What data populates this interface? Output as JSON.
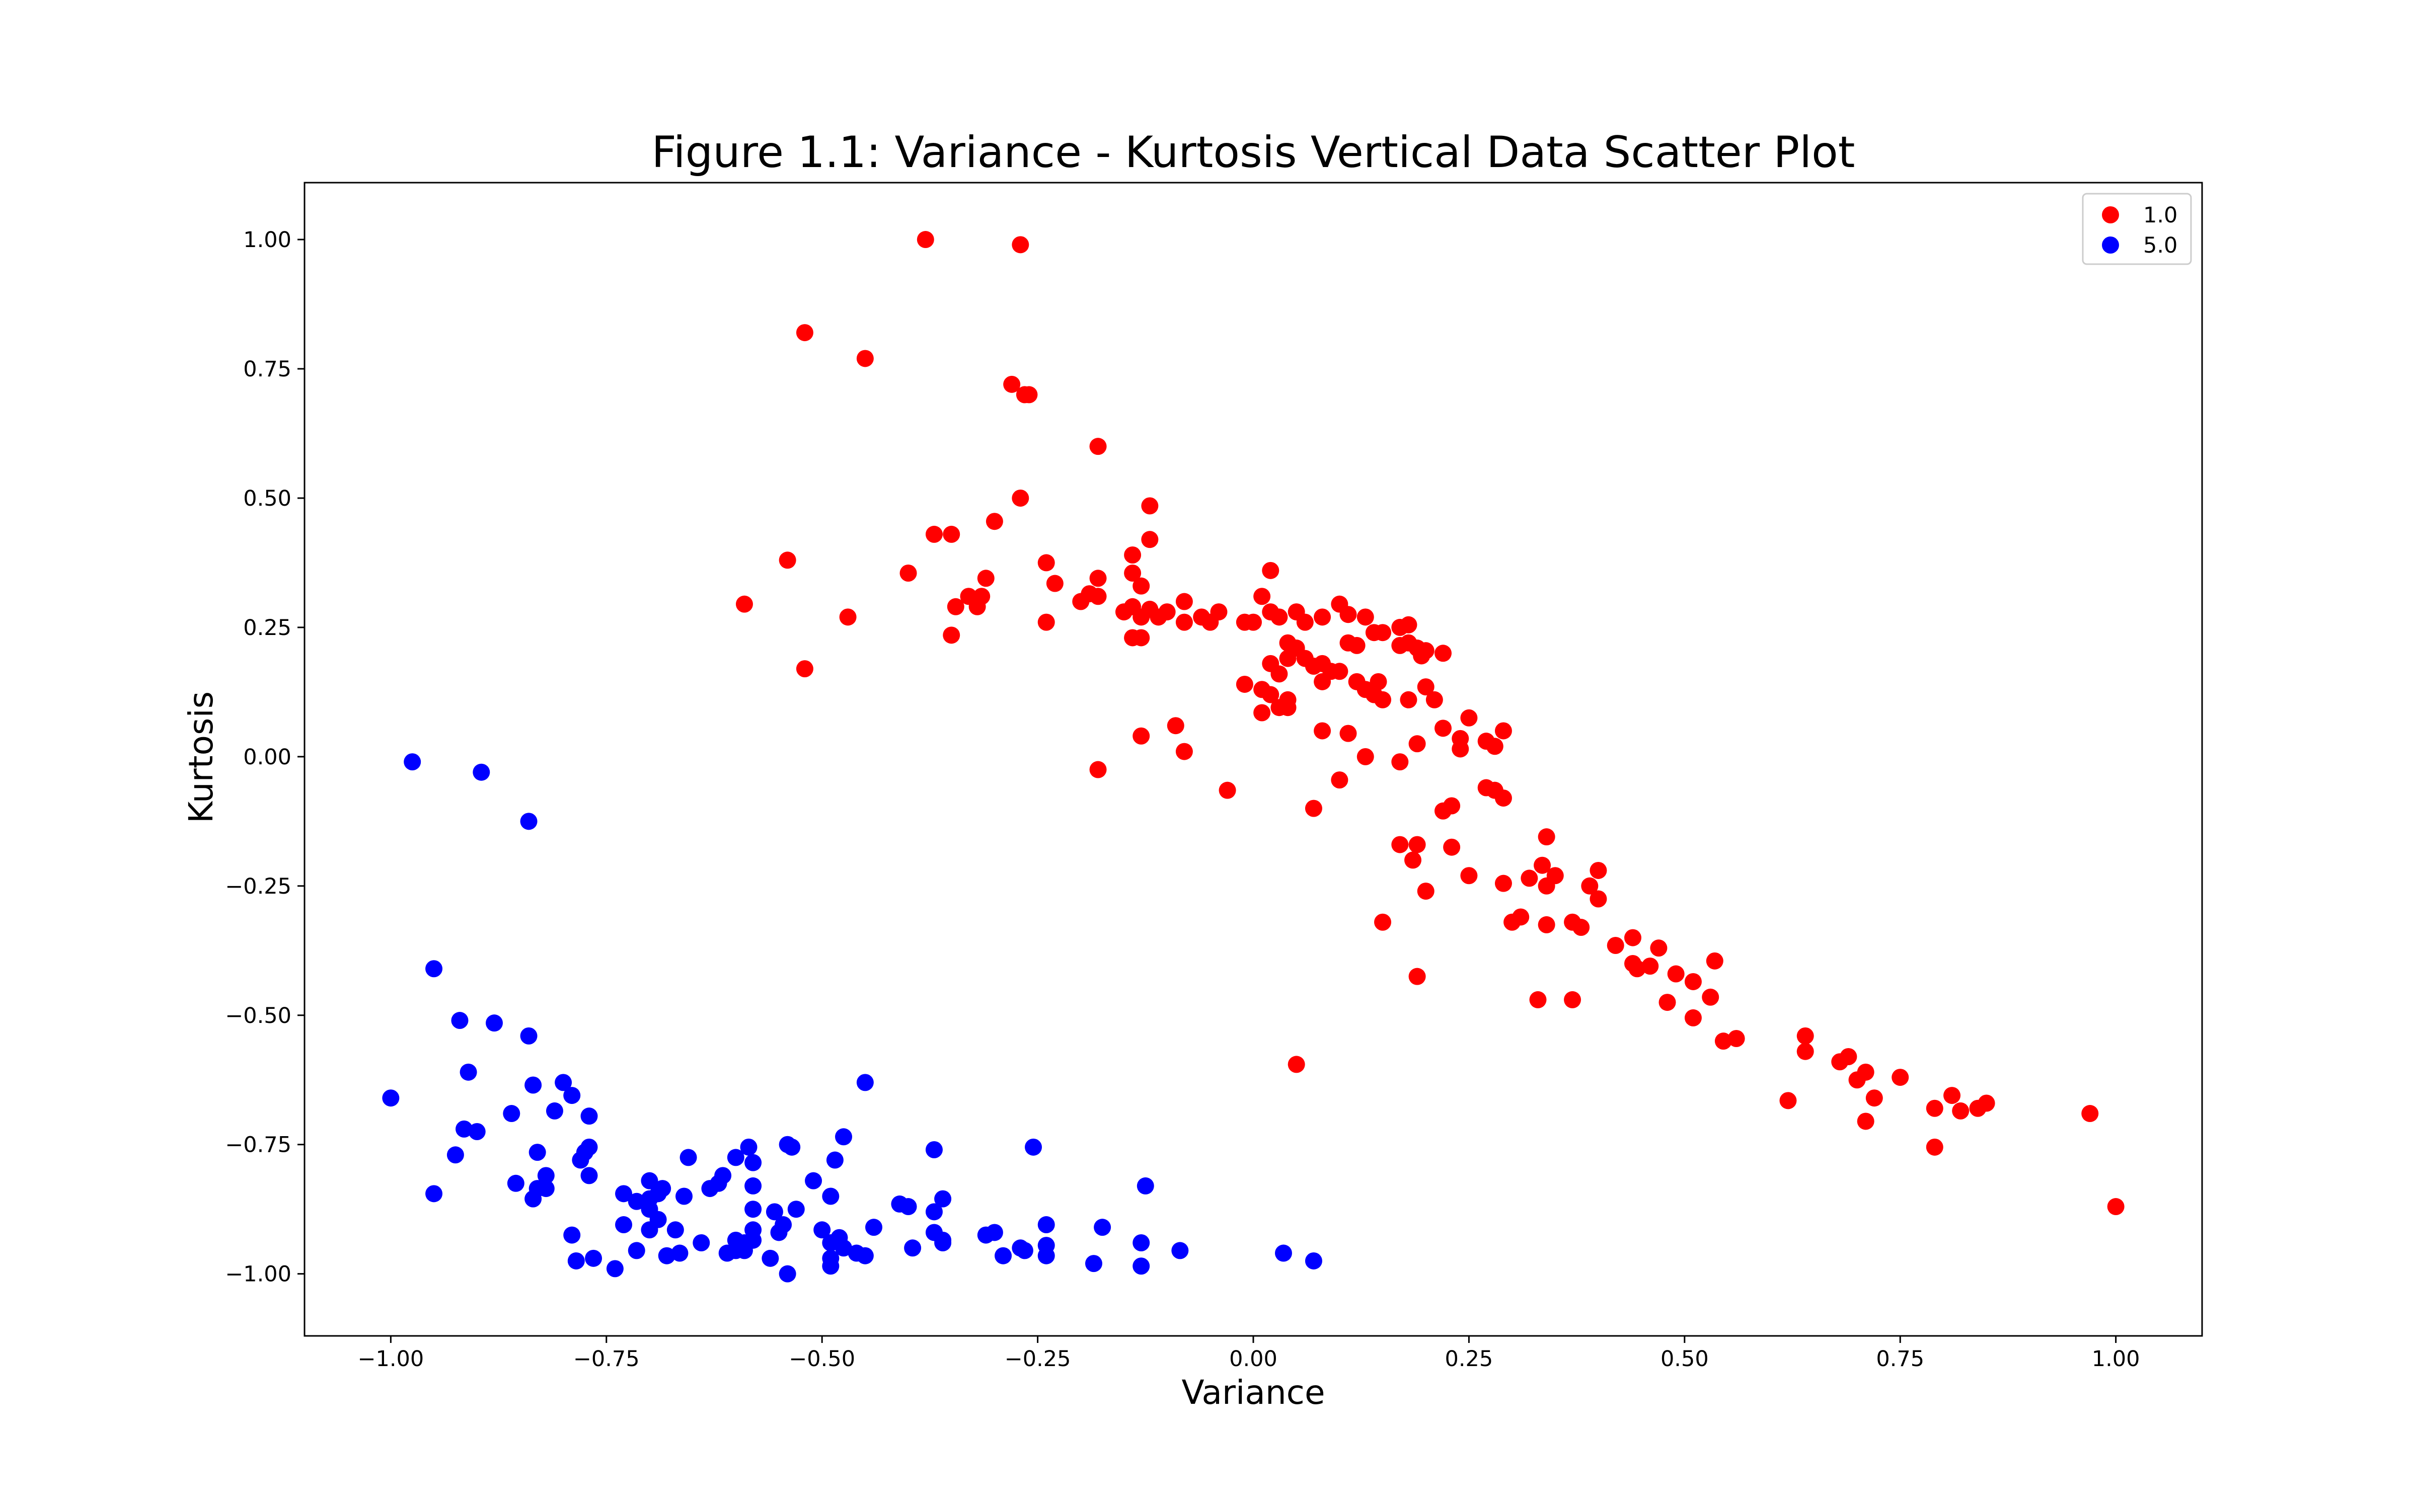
{
  "chart_data": {
    "type": "scatter",
    "title": "Figure 1.1: Variance - Kurtosis Vertical Data Scatter Plot",
    "xlabel": "Variance",
    "ylabel": "Kurtosis",
    "xlim": [
      -1.1,
      1.1
    ],
    "ylim": [
      -1.12,
      1.11
    ],
    "x_ticks": [
      -1.0,
      -0.75,
      -0.5,
      -0.25,
      0.0,
      0.25,
      0.5,
      0.75,
      1.0
    ],
    "x_tick_labels": [
      "−1.00",
      "−0.75",
      "−0.50",
      "−0.25",
      "0.00",
      "0.25",
      "0.50",
      "0.75",
      "1.00"
    ],
    "y_ticks": [
      1.0,
      0.75,
      0.5,
      0.25,
      0.0,
      -0.25,
      -0.5,
      -0.75,
      -1.0
    ],
    "y_tick_labels": [
      "1.00",
      "0.75",
      "0.50",
      "0.25",
      "0.00",
      "−0.25",
      "−0.50",
      "−0.75",
      "−1.00"
    ],
    "grid": false,
    "legend_position": "top-right",
    "series": [
      {
        "name": "1.0",
        "color": "#ff0000",
        "points": [
          [
            -0.38,
            1.0
          ],
          [
            -0.27,
            0.99
          ],
          [
            -0.52,
            0.82
          ],
          [
            -0.45,
            0.77
          ],
          [
            -0.28,
            0.72
          ],
          [
            -0.265,
            0.7
          ],
          [
            -0.26,
            0.7
          ],
          [
            -0.18,
            0.6
          ],
          [
            -0.27,
            0.5
          ],
          [
            -0.12,
            0.485
          ],
          [
            -0.3,
            0.455
          ],
          [
            -0.37,
            0.43
          ],
          [
            -0.35,
            0.43
          ],
          [
            -0.12,
            0.42
          ],
          [
            -0.54,
            0.38
          ],
          [
            -0.24,
            0.375
          ],
          [
            -0.14,
            0.39
          ],
          [
            -0.4,
            0.355
          ],
          [
            -0.31,
            0.345
          ],
          [
            -0.23,
            0.335
          ],
          [
            -0.18,
            0.345
          ],
          [
            -0.14,
            0.355
          ],
          [
            -0.33,
            0.31
          ],
          [
            -0.315,
            0.31
          ],
          [
            -0.345,
            0.29
          ],
          [
            -0.32,
            0.29
          ],
          [
            -0.19,
            0.315
          ],
          [
            -0.18,
            0.31
          ],
          [
            -0.2,
            0.3
          ],
          [
            -0.13,
            0.33
          ],
          [
            -0.08,
            0.3
          ],
          [
            -0.59,
            0.295
          ],
          [
            -0.15,
            0.28
          ],
          [
            -0.14,
            0.29
          ],
          [
            -0.12,
            0.285
          ],
          [
            -0.13,
            0.27
          ],
          [
            -0.11,
            0.27
          ],
          [
            -0.1,
            0.28
          ],
          [
            -0.06,
            0.27
          ],
          [
            -0.04,
            0.28
          ],
          [
            -0.05,
            0.26
          ],
          [
            -0.01,
            0.26
          ],
          [
            0.01,
            0.31
          ],
          [
            0.02,
            0.36
          ],
          [
            0.02,
            0.28
          ],
          [
            0.03,
            0.27
          ],
          [
            0.05,
            0.28
          ],
          [
            0.06,
            0.26
          ],
          [
            0.08,
            0.27
          ],
          [
            0.1,
            0.295
          ],
          [
            0.11,
            0.275
          ],
          [
            0.13,
            0.27
          ],
          [
            0.15,
            0.24
          ],
          [
            0.17,
            0.25
          ],
          [
            0.18,
            0.255
          ],
          [
            -0.47,
            0.27
          ],
          [
            -0.24,
            0.26
          ],
          [
            -0.35,
            0.235
          ],
          [
            -0.14,
            0.23
          ],
          [
            -0.13,
            0.23
          ],
          [
            -0.08,
            0.26
          ],
          [
            0.0,
            0.26
          ],
          [
            0.04,
            0.22
          ],
          [
            0.05,
            0.21
          ],
          [
            0.04,
            0.19
          ],
          [
            0.06,
            0.19
          ],
          [
            0.07,
            0.175
          ],
          [
            0.08,
            0.18
          ],
          [
            0.09,
            0.165
          ],
          [
            0.1,
            0.165
          ],
          [
            0.11,
            0.22
          ],
          [
            0.12,
            0.215
          ],
          [
            0.14,
            0.24
          ],
          [
            0.17,
            0.215
          ],
          [
            0.18,
            0.22
          ],
          [
            0.19,
            0.21
          ],
          [
            0.195,
            0.195
          ],
          [
            0.2,
            0.205
          ],
          [
            0.22,
            0.2
          ],
          [
            -0.52,
            0.17
          ],
          [
            0.02,
            0.18
          ],
          [
            0.03,
            0.16
          ],
          [
            0.08,
            0.145
          ],
          [
            0.12,
            0.145
          ],
          [
            0.13,
            0.13
          ],
          [
            0.14,
            0.12
          ],
          [
            0.145,
            0.145
          ],
          [
            0.15,
            0.11
          ],
          [
            -0.01,
            0.14
          ],
          [
            0.01,
            0.13
          ],
          [
            0.02,
            0.12
          ],
          [
            0.04,
            0.11
          ],
          [
            0.03,
            0.095
          ],
          [
            0.04,
            0.095
          ],
          [
            0.01,
            0.085
          ],
          [
            0.18,
            0.11
          ],
          [
            0.2,
            0.135
          ],
          [
            0.21,
            0.11
          ],
          [
            0.25,
            0.075
          ],
          [
            -0.09,
            0.06
          ],
          [
            0.08,
            0.05
          ],
          [
            0.11,
            0.045
          ],
          [
            0.22,
            0.055
          ],
          [
            0.24,
            0.035
          ],
          [
            0.24,
            0.015
          ],
          [
            0.27,
            0.03
          ],
          [
            0.28,
            0.02
          ],
          [
            0.29,
            0.05
          ],
          [
            -0.13,
            0.04
          ],
          [
            -0.08,
            0.01
          ],
          [
            0.13,
            0.0
          ],
          [
            0.17,
            -0.01
          ],
          [
            0.19,
            0.025
          ],
          [
            -0.18,
            -0.025
          ],
          [
            0.1,
            -0.045
          ],
          [
            -0.03,
            -0.065
          ],
          [
            0.07,
            -0.1
          ],
          [
            0.22,
            -0.105
          ],
          [
            0.23,
            -0.095
          ],
          [
            0.27,
            -0.06
          ],
          [
            0.28,
            -0.065
          ],
          [
            0.29,
            -0.08
          ],
          [
            0.17,
            -0.17
          ],
          [
            0.19,
            -0.17
          ],
          [
            0.23,
            -0.175
          ],
          [
            0.185,
            -0.2
          ],
          [
            0.34,
            -0.155
          ],
          [
            0.335,
            -0.21
          ],
          [
            0.4,
            -0.22
          ],
          [
            0.25,
            -0.23
          ],
          [
            0.29,
            -0.245
          ],
          [
            0.32,
            -0.235
          ],
          [
            0.35,
            -0.23
          ],
          [
            0.34,
            -0.25
          ],
          [
            0.39,
            -0.25
          ],
          [
            0.2,
            -0.26
          ],
          [
            0.4,
            -0.275
          ],
          [
            0.15,
            -0.32
          ],
          [
            0.3,
            -0.32
          ],
          [
            0.31,
            -0.31
          ],
          [
            0.34,
            -0.325
          ],
          [
            0.37,
            -0.32
          ],
          [
            0.38,
            -0.33
          ],
          [
            0.44,
            -0.35
          ],
          [
            0.42,
            -0.365
          ],
          [
            0.47,
            -0.37
          ],
          [
            0.44,
            -0.4
          ],
          [
            0.445,
            -0.41
          ],
          [
            0.46,
            -0.405
          ],
          [
            0.49,
            -0.42
          ],
          [
            0.535,
            -0.395
          ],
          [
            0.19,
            -0.425
          ],
          [
            0.51,
            -0.435
          ],
          [
            0.33,
            -0.47
          ],
          [
            0.37,
            -0.47
          ],
          [
            0.48,
            -0.475
          ],
          [
            0.53,
            -0.465
          ],
          [
            0.51,
            -0.505
          ],
          [
            0.545,
            -0.55
          ],
          [
            0.56,
            -0.545
          ],
          [
            0.64,
            -0.54
          ],
          [
            0.64,
            -0.57
          ],
          [
            0.68,
            -0.59
          ],
          [
            0.69,
            -0.58
          ],
          [
            0.7,
            -0.625
          ],
          [
            0.71,
            -0.61
          ],
          [
            0.75,
            -0.62
          ],
          [
            0.05,
            -0.595
          ],
          [
            0.62,
            -0.665
          ],
          [
            0.72,
            -0.66
          ],
          [
            0.79,
            -0.68
          ],
          [
            0.81,
            -0.655
          ],
          [
            0.82,
            -0.685
          ],
          [
            0.84,
            -0.68
          ],
          [
            0.85,
            -0.67
          ],
          [
            0.97,
            -0.69
          ],
          [
            0.71,
            -0.705
          ],
          [
            0.79,
            -0.755
          ],
          [
            1.0,
            -0.87
          ]
        ]
      },
      {
        "name": "5.0",
        "color": "#0000ff",
        "points": [
          [
            -0.975,
            -0.01
          ],
          [
            -0.895,
            -0.03
          ],
          [
            -0.84,
            -0.125
          ],
          [
            -0.95,
            -0.41
          ],
          [
            -0.92,
            -0.51
          ],
          [
            -0.88,
            -0.515
          ],
          [
            -0.84,
            -0.54
          ],
          [
            -0.91,
            -0.61
          ],
          [
            -0.835,
            -0.635
          ],
          [
            -0.8,
            -0.63
          ],
          [
            -0.79,
            -0.655
          ],
          [
            -1.0,
            -0.66
          ],
          [
            -0.77,
            -0.695
          ],
          [
            -0.86,
            -0.69
          ],
          [
            -0.81,
            -0.685
          ],
          [
            -0.915,
            -0.72
          ],
          [
            -0.9,
            -0.725
          ],
          [
            -0.925,
            -0.77
          ],
          [
            -0.83,
            -0.765
          ],
          [
            -0.775,
            -0.765
          ],
          [
            -0.78,
            -0.78
          ],
          [
            -0.77,
            -0.755
          ],
          [
            -0.82,
            -0.81
          ],
          [
            -0.77,
            -0.81
          ],
          [
            -0.855,
            -0.825
          ],
          [
            -0.82,
            -0.835
          ],
          [
            -0.83,
            -0.835
          ],
          [
            -0.835,
            -0.855
          ],
          [
            -0.95,
            -0.845
          ],
          [
            -0.73,
            -0.845
          ],
          [
            -0.715,
            -0.86
          ],
          [
            -0.7,
            -0.82
          ],
          [
            -0.685,
            -0.835
          ],
          [
            -0.7,
            -0.855
          ],
          [
            -0.69,
            -0.845
          ],
          [
            -0.66,
            -0.85
          ],
          [
            -0.655,
            -0.775
          ],
          [
            -0.63,
            -0.835
          ],
          [
            -0.62,
            -0.825
          ],
          [
            -0.615,
            -0.81
          ],
          [
            -0.6,
            -0.775
          ],
          [
            -0.585,
            -0.755
          ],
          [
            -0.58,
            -0.785
          ],
          [
            -0.54,
            -0.75
          ],
          [
            -0.535,
            -0.755
          ],
          [
            -0.475,
            -0.735
          ],
          [
            -0.45,
            -0.63
          ],
          [
            -0.485,
            -0.78
          ],
          [
            -0.51,
            -0.82
          ],
          [
            -0.49,
            -0.85
          ],
          [
            -0.53,
            -0.875
          ],
          [
            -0.555,
            -0.88
          ],
          [
            -0.58,
            -0.875
          ],
          [
            -0.58,
            -0.83
          ],
          [
            -0.37,
            -0.76
          ],
          [
            -0.255,
            -0.755
          ],
          [
            -0.125,
            -0.83
          ],
          [
            -0.36,
            -0.855
          ],
          [
            -0.37,
            -0.88
          ],
          [
            -0.4,
            -0.87
          ],
          [
            -0.41,
            -0.865
          ],
          [
            -0.7,
            -0.875
          ],
          [
            -0.69,
            -0.895
          ],
          [
            -0.73,
            -0.905
          ],
          [
            -0.67,
            -0.915
          ],
          [
            -0.7,
            -0.915
          ],
          [
            -0.79,
            -0.925
          ],
          [
            -0.6,
            -0.935
          ],
          [
            -0.64,
            -0.94
          ],
          [
            -0.6,
            -0.955
          ],
          [
            -0.59,
            -0.94
          ],
          [
            -0.58,
            -0.935
          ],
          [
            -0.59,
            -0.955
          ],
          [
            -0.58,
            -0.915
          ],
          [
            -0.55,
            -0.92
          ],
          [
            -0.545,
            -0.905
          ],
          [
            -0.5,
            -0.915
          ],
          [
            -0.49,
            -0.94
          ],
          [
            -0.48,
            -0.93
          ],
          [
            -0.475,
            -0.95
          ],
          [
            -0.46,
            -0.96
          ],
          [
            -0.45,
            -0.965
          ],
          [
            -0.44,
            -0.91
          ],
          [
            -0.37,
            -0.92
          ],
          [
            -0.36,
            -0.935
          ],
          [
            -0.36,
            -0.94
          ],
          [
            -0.31,
            -0.925
          ],
          [
            -0.3,
            -0.92
          ],
          [
            -0.24,
            -0.905
          ],
          [
            -0.24,
            -0.945
          ],
          [
            -0.265,
            -0.955
          ],
          [
            -0.27,
            -0.95
          ],
          [
            -0.29,
            -0.965
          ],
          [
            -0.24,
            -0.965
          ],
          [
            -0.175,
            -0.91
          ],
          [
            -0.13,
            -0.94
          ],
          [
            -0.085,
            -0.955
          ],
          [
            0.035,
            -0.96
          ],
          [
            0.07,
            -0.975
          ],
          [
            -0.185,
            -0.98
          ],
          [
            -0.13,
            -0.985
          ],
          [
            -0.395,
            -0.95
          ],
          [
            -0.49,
            -0.97
          ],
          [
            -0.49,
            -0.985
          ],
          [
            -0.56,
            -0.97
          ],
          [
            -0.54,
            -1.0
          ],
          [
            -0.61,
            -0.96
          ],
          [
            -0.68,
            -0.965
          ],
          [
            -0.665,
            -0.96
          ],
          [
            -0.715,
            -0.955
          ],
          [
            -0.765,
            -0.97
          ],
          [
            -0.785,
            -0.975
          ],
          [
            -0.74,
            -0.99
          ]
        ]
      }
    ]
  }
}
